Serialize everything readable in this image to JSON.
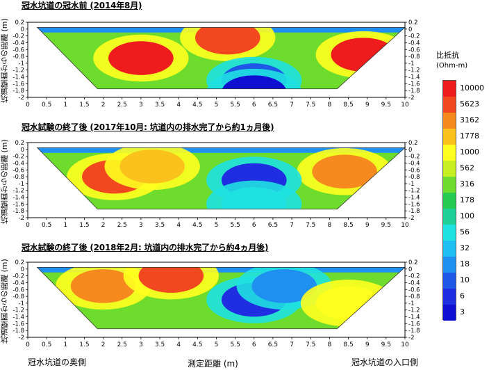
{
  "ylabel": "坑道壁面からの距離 (m)",
  "panels": [
    {
      "title": "冠水坑道の冠水前 (2014年8月)"
    },
    {
      "title": "冠水試験の終了後 (2017年10月: 坑道内の排水完了から約1ヵ月後)"
    },
    {
      "title": "冠水試験の終了後 (2018年2月: 坑道内の排水完了から約4ヵ月後)"
    }
  ],
  "footer": {
    "left": "冠水坑道の奥側",
    "center": "測定距離 (m)",
    "right": "冠水坑道の入口側"
  },
  "legend": {
    "title_line1": "比抵抗",
    "title_line2": "(Ohm-m)",
    "levels": [
      {
        "label": "10000",
        "color": "#ee1c1c"
      },
      {
        "label": "5623",
        "color": "#f2481f"
      },
      {
        "label": "3162",
        "color": "#f78a1f"
      },
      {
        "label": "1778",
        "color": "#fbc21e"
      },
      {
        "label": "1000",
        "color": "#ffff1f"
      },
      {
        "label": "562",
        "color": "#c6f021"
      },
      {
        "label": "316",
        "color": "#6edc2c"
      },
      {
        "label": "178",
        "color": "#26cc52"
      },
      {
        "label": "100",
        "color": "#1fcf98"
      },
      {
        "label": "56",
        "color": "#1fe1e1"
      },
      {
        "label": "32",
        "color": "#1fbff1"
      },
      {
        "label": "18",
        "color": "#1f90f0"
      },
      {
        "label": "10",
        "color": "#1f58e6"
      },
      {
        "label": "6",
        "color": "#1f2ee0"
      },
      {
        "label": "3",
        "color": "#0f0fd2"
      }
    ]
  },
  "chart_data": [
    {
      "type": "heatmap",
      "title": "冠水坑道の冠水前 (2014年8月)",
      "xlabel": "測定距離 (m)",
      "ylabel": "坑道壁面からの距離 (m)",
      "xlim": [
        0,
        10
      ],
      "ylim": [
        -2,
        0.2
      ],
      "xticks": [
        "0",
        "0.5",
        "1",
        "1.5",
        "2",
        "2.5",
        "3",
        "3.5",
        "4",
        "4.5",
        "5",
        "5.5",
        "6",
        "6.5",
        "7",
        "7.5",
        "8",
        "8.5",
        "9",
        "9.5",
        "10"
      ],
      "yticks_left": [
        "0.2",
        "0",
        "-0.2",
        "-0.4",
        "-0.6",
        "-0.8",
        "-1",
        "-1.2",
        "-1.4",
        "-1.6",
        "-1.8",
        "-2"
      ],
      "yticks_right": [
        "0.2",
        "0",
        "-0.2",
        "-0.4",
        "-0.6",
        "-0.8",
        "-1",
        "-1.2",
        "-1.4",
        "-1.6",
        "-1.8",
        "-2"
      ],
      "colorbar_unit": "Ohm-m",
      "features": [
        {
          "x": 3.0,
          "y": -0.85,
          "value": 10000
        },
        {
          "x": 8.9,
          "y": -0.75,
          "value": 10000
        },
        {
          "x": 5.3,
          "y": -0.25,
          "value": 5623
        },
        {
          "x": 6.0,
          "y": -1.5,
          "value": 10
        },
        {
          "x": 6.0,
          "y": -1.85,
          "value": 3
        }
      ]
    },
    {
      "type": "heatmap",
      "title": "冠水試験の終了後 (2017年10月: 坑道内の排水完了から約1ヵ月後)",
      "xlabel": "測定距離 (m)",
      "ylabel": "坑道壁面からの距離 (m)",
      "xlim": [
        0,
        10
      ],
      "ylim": [
        -2,
        0.2
      ],
      "xticks": [
        "0",
        "0.5",
        "1",
        "1.5",
        "2",
        "2.5",
        "3",
        "3.5",
        "4",
        "4.5",
        "5",
        "5.5",
        "6",
        "6.5",
        "7",
        "7.5",
        "8",
        "8.5",
        "9",
        "9.5",
        "10"
      ],
      "yticks_left": [
        "0.2",
        "0",
        "-0.2",
        "-0.4",
        "-0.6",
        "-0.8",
        "-1",
        "-1.2",
        "-1.4",
        "-1.6",
        "-1.8",
        "-2"
      ],
      "yticks_right": [
        "0.2",
        "0",
        "-0.2",
        "-0.4",
        "-0.6",
        "-0.8",
        "-1",
        "-1.2",
        "-1.4",
        "-1.6",
        "-1.8",
        "-2"
      ],
      "colorbar_unit": "Ohm-m",
      "features": [
        {
          "x": 2.3,
          "y": -0.8,
          "value": 5623
        },
        {
          "x": 3.3,
          "y": -0.5,
          "value": 1778
        },
        {
          "x": 8.4,
          "y": -0.65,
          "value": 3162
        },
        {
          "x": 6.0,
          "y": -0.9,
          "value": 6
        },
        {
          "x": 6.0,
          "y": -1.6,
          "value": 56
        }
      ]
    },
    {
      "type": "heatmap",
      "title": "冠水試験の終了後 (2018年2月: 坑道内の排水完了から約4ヵ月後)",
      "xlabel": "測定距離 (m)",
      "ylabel": "坑道壁面からの距離 (m)",
      "xlim": [
        0,
        10
      ],
      "ylim": [
        -2,
        0.2
      ],
      "xticks": [
        "0",
        "0.5",
        "1",
        "1.5",
        "2",
        "2.5",
        "3",
        "3.5",
        "4",
        "4.5",
        "5",
        "5.5",
        "6",
        "6.5",
        "7",
        "7.5",
        "8",
        "8.5",
        "9",
        "9.5",
        "10"
      ],
      "yticks_left": [
        "0.2",
        "0",
        "-0.2",
        "-0.4",
        "-0.6",
        "-0.8",
        "-1",
        "-1.2",
        "-1.4",
        "-1.6",
        "-1.8",
        "-2"
      ],
      "yticks_right": [
        "0.2",
        "0",
        "-0.2",
        "-0.4",
        "-0.6",
        "-0.8",
        "-1",
        "-1.2",
        "-1.4",
        "-1.6",
        "-1.8",
        "-2"
      ],
      "colorbar_unit": "Ohm-m",
      "features": [
        {
          "x": 2.0,
          "y": -0.5,
          "value": 3162
        },
        {
          "x": 3.8,
          "y": -0.2,
          "value": 5623
        },
        {
          "x": 6.0,
          "y": -0.9,
          "value": 6
        },
        {
          "x": 6.8,
          "y": -0.5,
          "value": 18
        },
        {
          "x": 8.5,
          "y": -1.0,
          "value": 1000
        }
      ]
    }
  ]
}
